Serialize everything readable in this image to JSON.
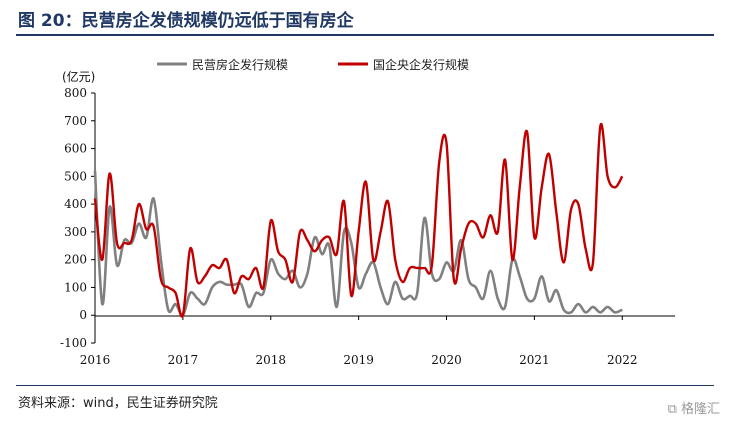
{
  "figure": {
    "title": "图 20：民营房企发债规模仍远低于国有房企",
    "source": "资料来源：wind，民生证券研究院",
    "watermark": "格隆汇"
  },
  "chart_data": {
    "type": "line",
    "title": "图 20：民营房企发债规模仍远低于国有房企",
    "ylabel": "(亿元)",
    "xlabel": "",
    "ylim": [
      -100,
      800
    ],
    "yticks": [
      -100,
      0,
      100,
      200,
      300,
      400,
      500,
      600,
      700,
      800
    ],
    "xlim": [
      2016.0,
      2022.6
    ],
    "xticks": [
      2016,
      2017,
      2018,
      2019,
      2020,
      2021,
      2022
    ],
    "x_start": 2016.0,
    "x_step_years": 0.08333,
    "legend_position": "top",
    "grid": false,
    "series": [
      {
        "name": "民营房企发行规模",
        "color": "#808080",
        "values": [
          520,
          40,
          390,
          180,
          270,
          260,
          330,
          280,
          420,
          200,
          20,
          40,
          0,
          80,
          60,
          40,
          100,
          120,
          110,
          110,
          110,
          30,
          80,
          80,
          200,
          150,
          130,
          160,
          100,
          150,
          280,
          220,
          250,
          30,
          300,
          260,
          100,
          150,
          190,
          100,
          40,
          120,
          60,
          70,
          80,
          350,
          150,
          130,
          190,
          160,
          270,
          130,
          100,
          60,
          160,
          60,
          30,
          200,
          140,
          60,
          60,
          140,
          50,
          90,
          20,
          10,
          40,
          10,
          30,
          10,
          30,
          10,
          20
        ]
      },
      {
        "name": "国企央企发行规模",
        "color": "#c00000",
        "values": [
          420,
          200,
          510,
          260,
          260,
          270,
          400,
          310,
          320,
          130,
          100,
          80,
          0,
          240,
          120,
          140,
          180,
          170,
          200,
          80,
          140,
          130,
          170,
          100,
          340,
          230,
          200,
          120,
          300,
          270,
          230,
          270,
          280,
          220,
          410,
          70,
          300,
          480,
          200,
          300,
          410,
          200,
          120,
          170,
          170,
          170,
          180,
          550,
          620,
          130,
          240,
          330,
          330,
          280,
          360,
          300,
          560,
          200,
          460,
          660,
          280,
          460,
          580,
          370,
          190,
          380,
          400,
          240,
          190,
          680,
          500,
          460,
          500
        ]
      }
    ]
  }
}
